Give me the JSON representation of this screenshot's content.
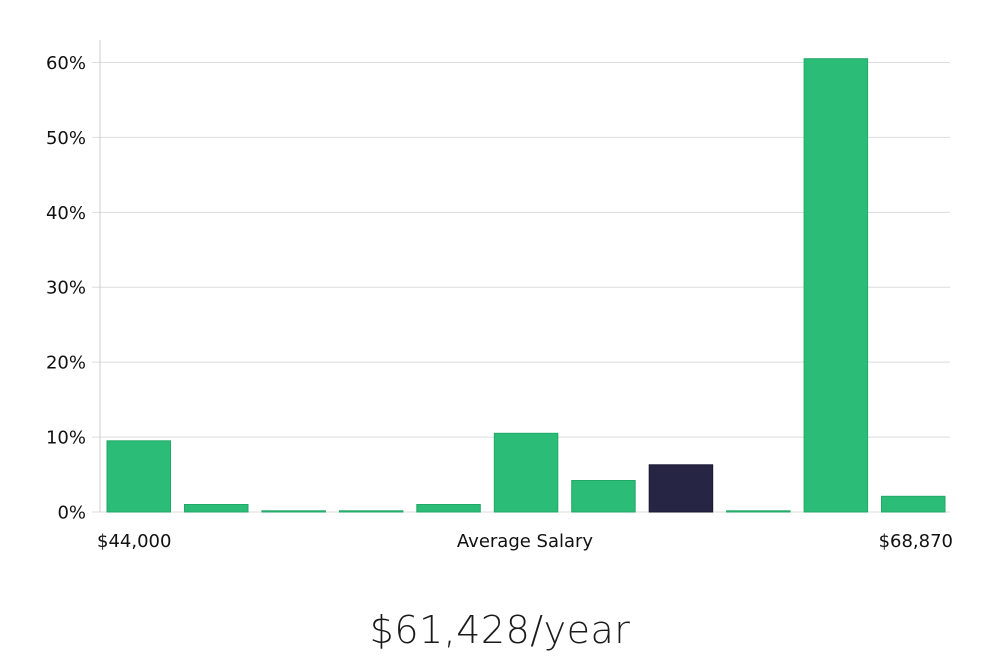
{
  "chart_data": {
    "type": "bar",
    "title": "",
    "xlabel": "Average Salary",
    "ylabel": "",
    "x_range_labels": {
      "min": "$44,000",
      "max": "$68,870"
    },
    "ylim": [
      0,
      63
    ],
    "yticks": [
      0,
      10,
      20,
      30,
      40,
      50,
      60
    ],
    "ytick_suffix": "%",
    "grid": true,
    "values": [
      9.5,
      1.0,
      0.1,
      0.1,
      1.0,
      10.5,
      4.2,
      6.3,
      0.1,
      60.5,
      2.1
    ],
    "highlight_index": 7,
    "colors": {
      "bar": "#2bbd77",
      "bar_edge": "#22a866",
      "highlight": "#272544",
      "highlight_edge": "#1a1833",
      "grid": "#dddddd",
      "axis": "#cccccc"
    }
  },
  "summary": {
    "salary_text": "$61,428/year"
  }
}
